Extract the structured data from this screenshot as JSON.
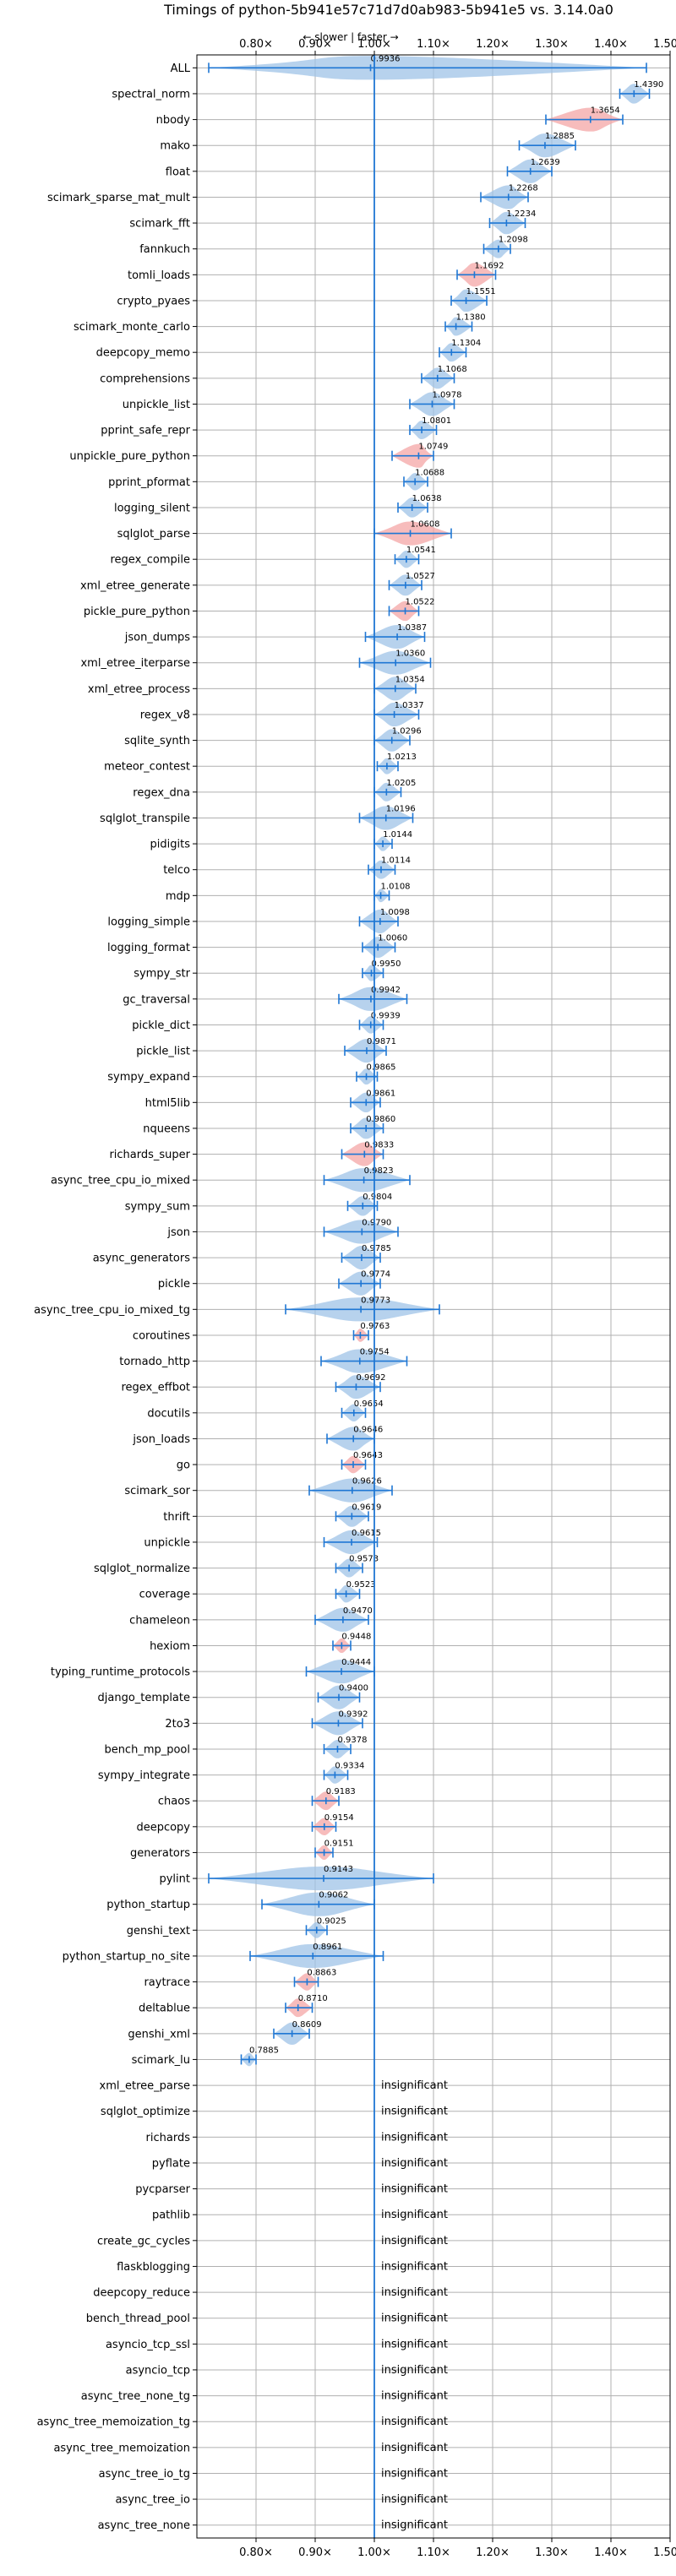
{
  "chart_data": {
    "type": "violin",
    "title": "Timings of python-5b941e57c71d7d0ab983-5b941e5 vs. 3.14.0a0",
    "subtitle": "← slower | faster →",
    "xlim": [
      0.7,
      1.5
    ],
    "xticks": [
      0.8,
      0.9,
      1.0,
      1.1,
      1.2,
      1.3,
      1.4,
      1.5
    ],
    "xtick_labels": [
      "0.80×",
      "0.90×",
      "1.00×",
      "1.10×",
      "1.20×",
      "1.30×",
      "1.40×",
      "1.50×"
    ],
    "reference_line": 1.0,
    "grid": true,
    "insignificant_label": "insignificant",
    "colors": {
      "normal": "#9fc3e7",
      "highlight": "#f4a6a6",
      "line": "#1f77d4"
    },
    "benchmarks": [
      {
        "name": "ALL",
        "value": 0.9936,
        "label": "0.9936",
        "lo": 0.72,
        "hi": 1.46,
        "hl": false
      },
      {
        "name": "spectral_norm",
        "value": 1.439,
        "label": "1.4390",
        "lo": 1.415,
        "hi": 1.465,
        "hl": false
      },
      {
        "name": "nbody",
        "value": 1.3654,
        "label": "1.3654",
        "lo": 1.29,
        "hi": 1.42,
        "hl": true
      },
      {
        "name": "mako",
        "value": 1.2885,
        "label": "1.2885",
        "lo": 1.245,
        "hi": 1.34,
        "hl": false
      },
      {
        "name": "float",
        "value": 1.2639,
        "label": "1.2639",
        "lo": 1.225,
        "hi": 1.3,
        "hl": false
      },
      {
        "name": "scimark_sparse_mat_mult",
        "value": 1.2268,
        "label": "1.2268",
        "lo": 1.18,
        "hi": 1.26,
        "hl": false
      },
      {
        "name": "scimark_fft",
        "value": 1.2234,
        "label": "1.2234",
        "lo": 1.195,
        "hi": 1.255,
        "hl": false
      },
      {
        "name": "fannkuch",
        "value": 1.2098,
        "label": "1.2098",
        "lo": 1.185,
        "hi": 1.23,
        "hl": false
      },
      {
        "name": "tomli_loads",
        "value": 1.1692,
        "label": "1.1692",
        "lo": 1.14,
        "hi": 1.205,
        "hl": true
      },
      {
        "name": "crypto_pyaes",
        "value": 1.1551,
        "label": "1.1551",
        "lo": 1.13,
        "hi": 1.19,
        "hl": false
      },
      {
        "name": "scimark_monte_carlo",
        "value": 1.138,
        "label": "1.1380",
        "lo": 1.12,
        "hi": 1.165,
        "hl": false
      },
      {
        "name": "deepcopy_memo",
        "value": 1.1304,
        "label": "1.1304",
        "lo": 1.11,
        "hi": 1.155,
        "hl": false
      },
      {
        "name": "comprehensions",
        "value": 1.1068,
        "label": "1.1068",
        "lo": 1.08,
        "hi": 1.135,
        "hl": false
      },
      {
        "name": "unpickle_list",
        "value": 1.0978,
        "label": "1.0978",
        "lo": 1.06,
        "hi": 1.135,
        "hl": false
      },
      {
        "name": "pprint_safe_repr",
        "value": 1.0801,
        "label": "1.0801",
        "lo": 1.06,
        "hi": 1.105,
        "hl": false
      },
      {
        "name": "unpickle_pure_python",
        "value": 1.0749,
        "label": "1.0749",
        "lo": 1.03,
        "hi": 1.1,
        "hl": true
      },
      {
        "name": "pprint_pformat",
        "value": 1.0688,
        "label": "1.0688",
        "lo": 1.05,
        "hi": 1.09,
        "hl": false
      },
      {
        "name": "logging_silent",
        "value": 1.0638,
        "label": "1.0638",
        "lo": 1.04,
        "hi": 1.09,
        "hl": false
      },
      {
        "name": "sqlglot_parse",
        "value": 1.0608,
        "label": "1.0608",
        "lo": 1.0,
        "hi": 1.13,
        "hl": true
      },
      {
        "name": "regex_compile",
        "value": 1.0541,
        "label": "1.0541",
        "lo": 1.035,
        "hi": 1.075,
        "hl": false
      },
      {
        "name": "xml_etree_generate",
        "value": 1.0527,
        "label": "1.0527",
        "lo": 1.025,
        "hi": 1.08,
        "hl": false
      },
      {
        "name": "pickle_pure_python",
        "value": 1.0522,
        "label": "1.0522",
        "lo": 1.025,
        "hi": 1.075,
        "hl": true
      },
      {
        "name": "json_dumps",
        "value": 1.0387,
        "label": "1.0387",
        "lo": 0.985,
        "hi": 1.085,
        "hl": false
      },
      {
        "name": "xml_etree_iterparse",
        "value": 1.036,
        "label": "1.0360",
        "lo": 0.975,
        "hi": 1.095,
        "hl": false
      },
      {
        "name": "xml_etree_process",
        "value": 1.0354,
        "label": "1.0354",
        "lo": 1.0,
        "hi": 1.07,
        "hl": false
      },
      {
        "name": "regex_v8",
        "value": 1.0337,
        "label": "1.0337",
        "lo": 1.0,
        "hi": 1.075,
        "hl": false
      },
      {
        "name": "sqlite_synth",
        "value": 1.0296,
        "label": "1.0296",
        "lo": 1.0,
        "hi": 1.06,
        "hl": false
      },
      {
        "name": "meteor_contest",
        "value": 1.0213,
        "label": "1.0213",
        "lo": 1.005,
        "hi": 1.04,
        "hl": false
      },
      {
        "name": "regex_dna",
        "value": 1.0205,
        "label": "1.0205",
        "lo": 1.0,
        "hi": 1.045,
        "hl": false
      },
      {
        "name": "sqlglot_transpile",
        "value": 1.0196,
        "label": "1.0196",
        "lo": 0.975,
        "hi": 1.065,
        "hl": false
      },
      {
        "name": "pidigits",
        "value": 1.0144,
        "label": "1.0144",
        "lo": 1.0,
        "hi": 1.03,
        "hl": false
      },
      {
        "name": "telco",
        "value": 1.0114,
        "label": "1.0114",
        "lo": 0.99,
        "hi": 1.035,
        "hl": false
      },
      {
        "name": "mdp",
        "value": 1.0108,
        "label": "1.0108",
        "lo": 1.0,
        "hi": 1.025,
        "hl": false
      },
      {
        "name": "logging_simple",
        "value": 1.0098,
        "label": "1.0098",
        "lo": 0.975,
        "hi": 1.04,
        "hl": false
      },
      {
        "name": "logging_format",
        "value": 1.006,
        "label": "1.0060",
        "lo": 0.98,
        "hi": 1.035,
        "hl": false
      },
      {
        "name": "sympy_str",
        "value": 0.995,
        "label": "0.9950",
        "lo": 0.98,
        "hi": 1.015,
        "hl": false
      },
      {
        "name": "gc_traversal",
        "value": 0.9942,
        "label": "0.9942",
        "lo": 0.94,
        "hi": 1.055,
        "hl": false
      },
      {
        "name": "pickle_dict",
        "value": 0.9939,
        "label": "0.9939",
        "lo": 0.975,
        "hi": 1.015,
        "hl": false
      },
      {
        "name": "pickle_list",
        "value": 0.9871,
        "label": "0.9871",
        "lo": 0.95,
        "hi": 1.02,
        "hl": false
      },
      {
        "name": "sympy_expand",
        "value": 0.9865,
        "label": "0.9865",
        "lo": 0.97,
        "hi": 1.005,
        "hl": false
      },
      {
        "name": "html5lib",
        "value": 0.9861,
        "label": "0.9861",
        "lo": 0.96,
        "hi": 1.01,
        "hl": false
      },
      {
        "name": "nqueens",
        "value": 0.986,
        "label": "0.9860",
        "lo": 0.96,
        "hi": 1.015,
        "hl": false
      },
      {
        "name": "richards_super",
        "value": 0.9833,
        "label": "0.9833",
        "lo": 0.945,
        "hi": 1.015,
        "hl": true
      },
      {
        "name": "async_tree_cpu_io_mixed",
        "value": 0.9823,
        "label": "0.9823",
        "lo": 0.915,
        "hi": 1.06,
        "hl": false
      },
      {
        "name": "sympy_sum",
        "value": 0.9804,
        "label": "0.9804",
        "lo": 0.955,
        "hi": 1.005,
        "hl": false
      },
      {
        "name": "json",
        "value": 0.979,
        "label": "0.9790",
        "lo": 0.915,
        "hi": 1.04,
        "hl": false
      },
      {
        "name": "async_generators",
        "value": 0.9785,
        "label": "0.9785",
        "lo": 0.945,
        "hi": 1.01,
        "hl": false
      },
      {
        "name": "pickle",
        "value": 0.9774,
        "label": "0.9774",
        "lo": 0.94,
        "hi": 1.01,
        "hl": false
      },
      {
        "name": "async_tree_cpu_io_mixed_tg",
        "value": 0.9773,
        "label": "0.9773",
        "lo": 0.85,
        "hi": 1.11,
        "hl": false
      },
      {
        "name": "coroutines",
        "value": 0.9763,
        "label": "0.9763",
        "lo": 0.965,
        "hi": 0.99,
        "hl": true
      },
      {
        "name": "tornado_http",
        "value": 0.9754,
        "label": "0.9754",
        "lo": 0.91,
        "hi": 1.055,
        "hl": false
      },
      {
        "name": "regex_effbot",
        "value": 0.9692,
        "label": "0.9692",
        "lo": 0.935,
        "hi": 1.01,
        "hl": false
      },
      {
        "name": "docutils",
        "value": 0.9654,
        "label": "0.9654",
        "lo": 0.945,
        "hi": 0.985,
        "hl": false
      },
      {
        "name": "json_loads",
        "value": 0.9646,
        "label": "0.9646",
        "lo": 0.92,
        "hi": 1.0,
        "hl": false
      },
      {
        "name": "go",
        "value": 0.9643,
        "label": "0.9643",
        "lo": 0.945,
        "hi": 0.985,
        "hl": true
      },
      {
        "name": "scimark_sor",
        "value": 0.9626,
        "label": "0.9626",
        "lo": 0.89,
        "hi": 1.03,
        "hl": false
      },
      {
        "name": "thrift",
        "value": 0.9619,
        "label": "0.9619",
        "lo": 0.935,
        "hi": 0.99,
        "hl": false
      },
      {
        "name": "unpickle",
        "value": 0.9615,
        "label": "0.9615",
        "lo": 0.915,
        "hi": 1.005,
        "hl": false
      },
      {
        "name": "sqlglot_normalize",
        "value": 0.9573,
        "label": "0.9573",
        "lo": 0.935,
        "hi": 0.98,
        "hl": false
      },
      {
        "name": "coverage",
        "value": 0.9523,
        "label": "0.9523",
        "lo": 0.935,
        "hi": 0.975,
        "hl": false
      },
      {
        "name": "chameleon",
        "value": 0.947,
        "label": "0.9470",
        "lo": 0.9,
        "hi": 0.99,
        "hl": false
      },
      {
        "name": "hexiom",
        "value": 0.9448,
        "label": "0.9448",
        "lo": 0.93,
        "hi": 0.96,
        "hl": true
      },
      {
        "name": "typing_runtime_protocols",
        "value": 0.9444,
        "label": "0.9444",
        "lo": 0.885,
        "hi": 1.0,
        "hl": false
      },
      {
        "name": "django_template",
        "value": 0.94,
        "label": "0.9400",
        "lo": 0.905,
        "hi": 0.975,
        "hl": false
      },
      {
        "name": "2to3",
        "value": 0.9392,
        "label": "0.9392",
        "lo": 0.895,
        "hi": 0.98,
        "hl": false
      },
      {
        "name": "bench_mp_pool",
        "value": 0.9378,
        "label": "0.9378",
        "lo": 0.915,
        "hi": 0.96,
        "hl": false
      },
      {
        "name": "sympy_integrate",
        "value": 0.9334,
        "label": "0.9334",
        "lo": 0.915,
        "hi": 0.955,
        "hl": false
      },
      {
        "name": "chaos",
        "value": 0.9183,
        "label": "0.9183",
        "lo": 0.895,
        "hi": 0.94,
        "hl": true
      },
      {
        "name": "deepcopy",
        "value": 0.9154,
        "label": "0.9154",
        "lo": 0.895,
        "hi": 0.935,
        "hl": true
      },
      {
        "name": "generators",
        "value": 0.9151,
        "label": "0.9151",
        "lo": 0.9,
        "hi": 0.93,
        "hl": true
      },
      {
        "name": "pylint",
        "value": 0.9143,
        "label": "0.9143",
        "lo": 0.72,
        "hi": 1.1,
        "hl": false
      },
      {
        "name": "python_startup",
        "value": 0.9062,
        "label": "0.9062",
        "lo": 0.81,
        "hi": 1.0,
        "hl": false
      },
      {
        "name": "genshi_text",
        "value": 0.9025,
        "label": "0.9025",
        "lo": 0.885,
        "hi": 0.92,
        "hl": false
      },
      {
        "name": "python_startup_no_site",
        "value": 0.8961,
        "label": "0.8961",
        "lo": 0.79,
        "hi": 1.015,
        "hl": false
      },
      {
        "name": "raytrace",
        "value": 0.8863,
        "label": "0.8863",
        "lo": 0.865,
        "hi": 0.905,
        "hl": true
      },
      {
        "name": "deltablue",
        "value": 0.871,
        "label": "0.8710",
        "lo": 0.85,
        "hi": 0.895,
        "hl": true
      },
      {
        "name": "genshi_xml",
        "value": 0.8609,
        "label": "0.8609",
        "lo": 0.83,
        "hi": 0.89,
        "hl": false
      },
      {
        "name": "scimark_lu",
        "value": 0.7885,
        "label": "0.7885",
        "lo": 0.775,
        "hi": 0.8,
        "hl": false
      },
      {
        "name": "xml_etree_parse",
        "value": null,
        "label": "",
        "lo": null,
        "hi": null,
        "hl": false
      },
      {
        "name": "sqlglot_optimize",
        "value": null,
        "label": "",
        "lo": null,
        "hi": null,
        "hl": false
      },
      {
        "name": "richards",
        "value": null,
        "label": "",
        "lo": null,
        "hi": null,
        "hl": false
      },
      {
        "name": "pyflate",
        "value": null,
        "label": "",
        "lo": null,
        "hi": null,
        "hl": false
      },
      {
        "name": "pycparser",
        "value": null,
        "label": "",
        "lo": null,
        "hi": null,
        "hl": false
      },
      {
        "name": "pathlib",
        "value": null,
        "label": "",
        "lo": null,
        "hi": null,
        "hl": false
      },
      {
        "name": "create_gc_cycles",
        "value": null,
        "label": "",
        "lo": null,
        "hi": null,
        "hl": false
      },
      {
        "name": "flaskblogging",
        "value": null,
        "label": "",
        "lo": null,
        "hi": null,
        "hl": false
      },
      {
        "name": "deepcopy_reduce",
        "value": null,
        "label": "",
        "lo": null,
        "hi": null,
        "hl": false
      },
      {
        "name": "bench_thread_pool",
        "value": null,
        "label": "",
        "lo": null,
        "hi": null,
        "hl": false
      },
      {
        "name": "asyncio_tcp_ssl",
        "value": null,
        "label": "",
        "lo": null,
        "hi": null,
        "hl": false
      },
      {
        "name": "asyncio_tcp",
        "value": null,
        "label": "",
        "lo": null,
        "hi": null,
        "hl": false
      },
      {
        "name": "async_tree_none_tg",
        "value": null,
        "label": "",
        "lo": null,
        "hi": null,
        "hl": false
      },
      {
        "name": "async_tree_memoization_tg",
        "value": null,
        "label": "",
        "lo": null,
        "hi": null,
        "hl": false
      },
      {
        "name": "async_tree_memoization",
        "value": null,
        "label": "",
        "lo": null,
        "hi": null,
        "hl": false
      },
      {
        "name": "async_tree_io_tg",
        "value": null,
        "label": "",
        "lo": null,
        "hi": null,
        "hl": false
      },
      {
        "name": "async_tree_io",
        "value": null,
        "label": "",
        "lo": null,
        "hi": null,
        "hl": false
      },
      {
        "name": "async_tree_none",
        "value": null,
        "label": "",
        "lo": null,
        "hi": null,
        "hl": false
      }
    ]
  }
}
